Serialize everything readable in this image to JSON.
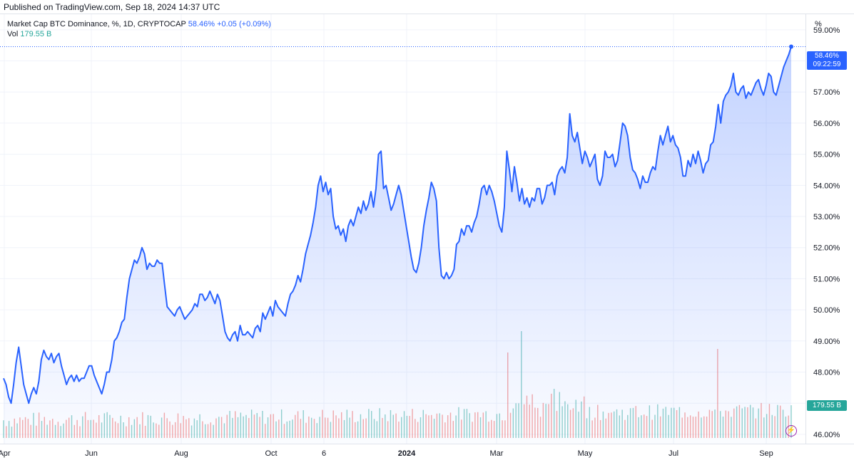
{
  "header": {
    "published": "Published on TradingView.com, Sep 18, 2024 14:37 UTC"
  },
  "legend": {
    "symbol": "Market Cap BTC Dominance, %, 1D, CRYPTOCAP",
    "last": "58.46%",
    "change": "+0.05 (+0.09%)",
    "vol_label": "Vol",
    "vol_value": "179.55 B"
  },
  "axis_unit": "%",
  "last_tag": {
    "value": "58.46%",
    "countdown": "09:22:59"
  },
  "vol_tag": "179.55 B",
  "colors": {
    "line": "#2962ff",
    "vol_up": "#26a69a",
    "vol_down": "#ef5350",
    "fill": "#2962ff"
  },
  "chart_data": {
    "type": "area",
    "ylim": [
      45.7,
      59.5
    ],
    "y_ticks": [
      "59.00%",
      "58.00%",
      "57.00%",
      "56.00%",
      "55.00%",
      "54.00%",
      "53.00%",
      "52.00%",
      "51.00%",
      "50.00%",
      "49.00%",
      "48.00%",
      "47.00%",
      "46.00%"
    ],
    "x_ticks": [
      "Apr",
      "Jun",
      "Aug",
      "Oct",
      "6",
      "2024",
      "Mar",
      "May",
      "Jul",
      "Sep"
    ],
    "series": [
      {
        "values": [
          47.8,
          47.6,
          47.2,
          47.0,
          47.6,
          48.3,
          48.8,
          48.2,
          47.6,
          47.3,
          47.0,
          47.3,
          47.5,
          47.3,
          47.7,
          48.4,
          48.7,
          48.5,
          48.4,
          48.6,
          48.3,
          48.5,
          48.6,
          48.2,
          47.9,
          47.6,
          47.8,
          47.9,
          47.7,
          47.9,
          47.7,
          47.8,
          47.8,
          48.0,
          48.2,
          48.2,
          47.9,
          47.7,
          47.5,
          47.3,
          47.6,
          48.0,
          48.0,
          48.4,
          49.0,
          49.1,
          49.3,
          49.6,
          49.7,
          50.4,
          51.0,
          51.3,
          51.6,
          51.5,
          51.7,
          52.0,
          51.8,
          51.3,
          51.5,
          51.4,
          51.4,
          51.6,
          51.5,
          51.5,
          50.8,
          50.1,
          50.0,
          49.9,
          49.8,
          50.0,
          50.1,
          49.9,
          49.7,
          49.8,
          49.9,
          50.0,
          50.2,
          50.1,
          50.5,
          50.5,
          50.3,
          50.4,
          50.6,
          50.4,
          50.2,
          50.5,
          50.3,
          49.8,
          49.3,
          49.1,
          49.0,
          49.2,
          49.3,
          49.0,
          49.5,
          49.2,
          49.2,
          49.3,
          49.2,
          49.1,
          49.4,
          49.5,
          49.3,
          49.9,
          49.7,
          49.9,
          50.1,
          49.8,
          50.3,
          50.1,
          50.0,
          49.9,
          49.8,
          50.2,
          50.5,
          50.6,
          50.8,
          51.1,
          50.9,
          51.3,
          51.8,
          52.1,
          52.4,
          52.8,
          53.3,
          54.0,
          54.3,
          53.8,
          54.1,
          53.7,
          53.9,
          53.0,
          52.6,
          52.7,
          52.4,
          52.6,
          52.2,
          52.7,
          52.9,
          52.7,
          53.0,
          53.3,
          53.1,
          53.5,
          53.2,
          53.4,
          53.8,
          53.3,
          53.9,
          55.0,
          55.1,
          53.9,
          54.0,
          53.6,
          53.2,
          53.4,
          53.7,
          54.0,
          53.7,
          53.2,
          52.7,
          52.2,
          51.7,
          51.3,
          51.2,
          51.5,
          52.0,
          52.7,
          53.2,
          53.6,
          54.1,
          53.9,
          53.5,
          52.0,
          51.1,
          51.0,
          51.2,
          51.0,
          51.1,
          51.3,
          52.1,
          52.2,
          52.6,
          52.4,
          52.7,
          52.7,
          52.5,
          52.8,
          53.0,
          53.4,
          53.9,
          54.0,
          53.7,
          54.0,
          53.8,
          53.5,
          53.1,
          52.7,
          52.5,
          53.3,
          55.1,
          54.5,
          53.8,
          54.6,
          54.1,
          53.5,
          53.9,
          53.4,
          53.6,
          53.3,
          53.6,
          53.5,
          53.9,
          53.9,
          53.4,
          53.6,
          54.0,
          54.0,
          54.1,
          53.7,
          54.3,
          54.5,
          54.6,
          54.4,
          54.9,
          56.3,
          55.6,
          55.4,
          55.7,
          55.2,
          54.7,
          55.1,
          54.9,
          54.6,
          54.8,
          55.0,
          54.2,
          54.0,
          54.3,
          55.1,
          54.9,
          54.9,
          55.0,
          54.6,
          54.8,
          55.4,
          56.0,
          55.9,
          55.6,
          54.9,
          54.5,
          54.4,
          54.2,
          53.9,
          54.3,
          54.1,
          54.1,
          54.4,
          54.6,
          54.5,
          55.1,
          55.6,
          55.3,
          55.6,
          55.9,
          55.4,
          55.6,
          55.3,
          55.2,
          54.9,
          54.3,
          54.3,
          54.8,
          54.6,
          55.0,
          54.7,
          55.1,
          54.8,
          54.4,
          54.7,
          54.8,
          55.3,
          55.4,
          55.9,
          56.6,
          56.0,
          56.7,
          56.9,
          57.0,
          57.2,
          57.6,
          57.0,
          56.9,
          57.1,
          57.2,
          56.8,
          57.0,
          56.9,
          57.1,
          57.3,
          57.4,
          57.1,
          56.9,
          57.2,
          57.6,
          57.5,
          57.0,
          56.9,
          57.2,
          57.5,
          57.8,
          58.0,
          58.2,
          58.46
        ]
      }
    ]
  }
}
